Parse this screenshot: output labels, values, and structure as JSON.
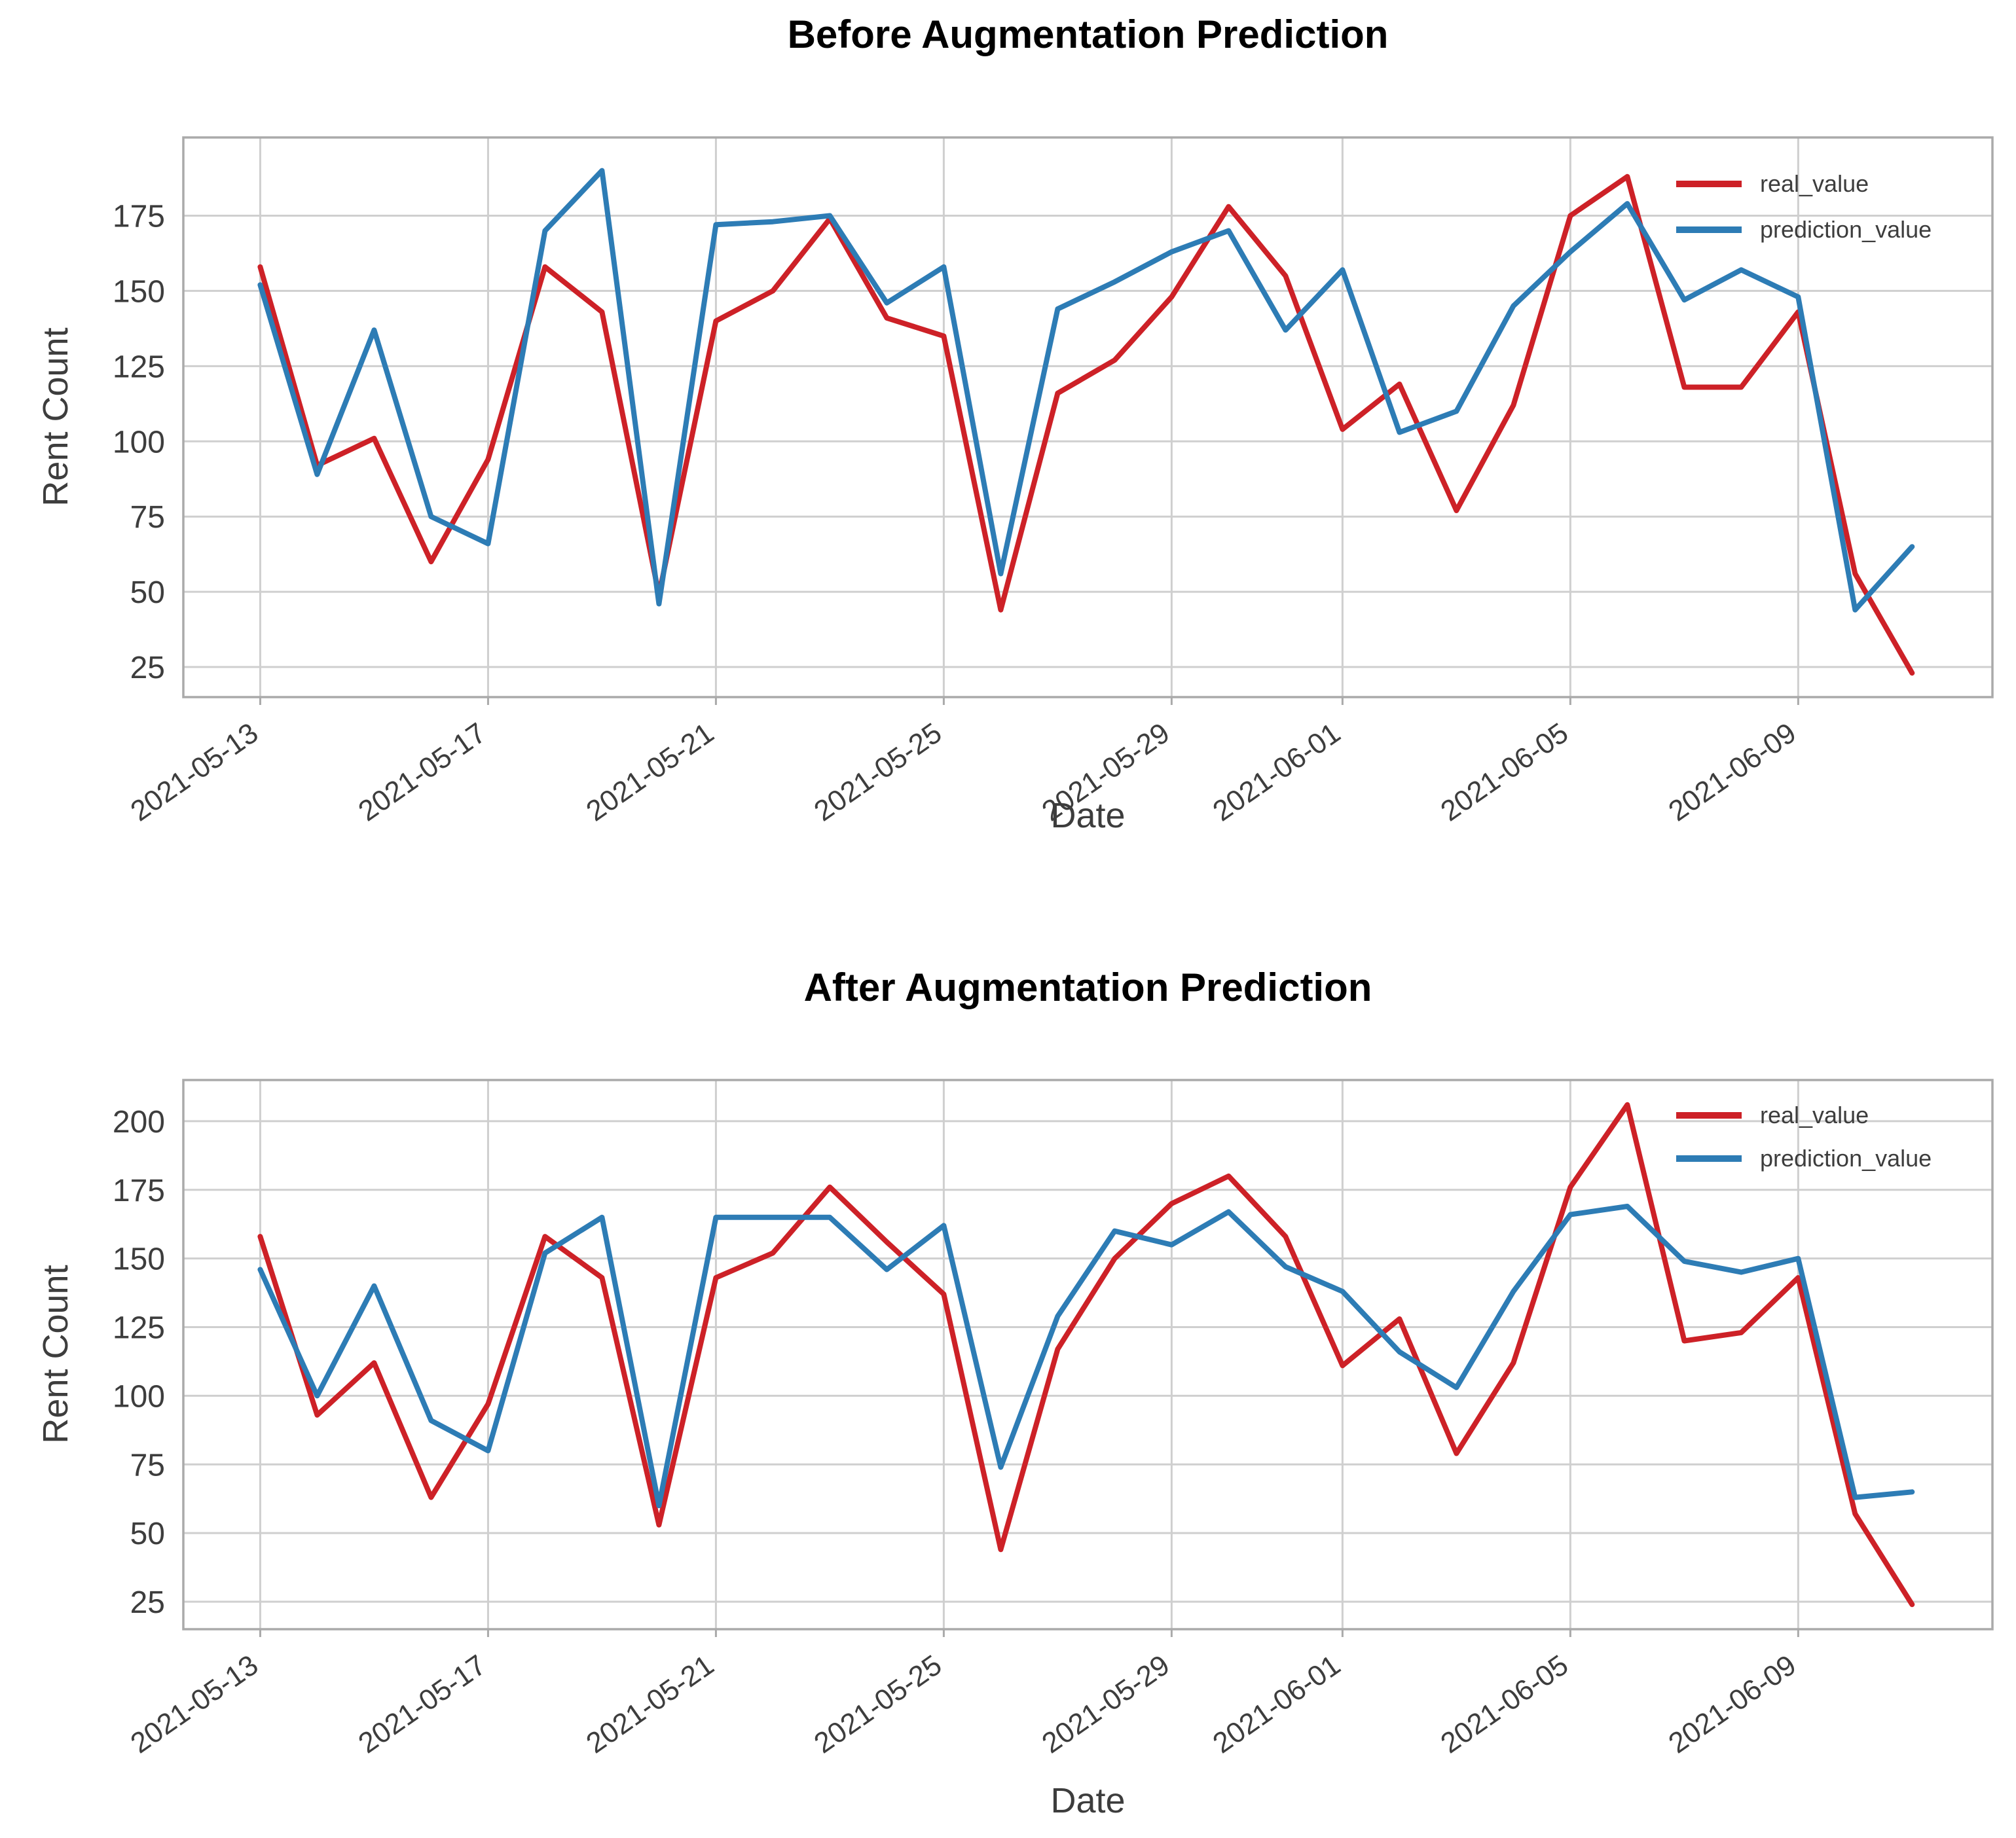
{
  "figure": {
    "background": "#ffffff"
  },
  "style": {
    "grid_color": "#cfcfcf",
    "spine_color": "#aaaaaa",
    "tick_label_color": "#3d3d3d",
    "axis_label_color": "#3d3d3d",
    "title_color": "#000000",
    "real_color": "#cd2127",
    "prediction_color": "#2d7cb5"
  },
  "chart_data": [
    {
      "type": "line",
      "title": "Before Augmentation Prediction",
      "xlabel": "Date",
      "ylabel": "Rent Count",
      "grid": true,
      "legend_position": "upper right",
      "ylim": [
        15,
        201
      ],
      "xlim": [
        -1.35,
        30.41
      ],
      "yticks": [
        25,
        50,
        75,
        100,
        125,
        150,
        175
      ],
      "xticks": [
        {
          "index": 0,
          "label": "2021-05-13"
        },
        {
          "index": 4,
          "label": "2021-05-17"
        },
        {
          "index": 8,
          "label": "2021-05-21"
        },
        {
          "index": 12,
          "label": "2021-05-25"
        },
        {
          "index": 16,
          "label": "2021-05-29"
        },
        {
          "index": 19,
          "label": "2021-06-01"
        },
        {
          "index": 23,
          "label": "2021-06-05"
        },
        {
          "index": 27,
          "label": "2021-06-09"
        }
      ],
      "x_dates": [
        "2021-05-13",
        "2021-05-14",
        "2021-05-15",
        "2021-05-16",
        "2021-05-17",
        "2021-05-18",
        "2021-05-19",
        "2021-05-20",
        "2021-05-21",
        "2021-05-22",
        "2021-05-23",
        "2021-05-24",
        "2021-05-25",
        "2021-05-26",
        "2021-05-27",
        "2021-05-28",
        "2021-05-29",
        "2021-05-30",
        "2021-05-31",
        "2021-06-01",
        "2021-06-02",
        "2021-06-03",
        "2021-06-04",
        "2021-06-05",
        "2021-06-06",
        "2021-06-07",
        "2021-06-08",
        "2021-06-09",
        "2021-06-10",
        "2021-06-11"
      ],
      "series": [
        {
          "name": "real_value",
          "color": "#cd2127",
          "values": [
            158,
            92,
            101,
            60,
            94,
            158,
            143,
            49,
            140,
            150,
            174,
            141,
            135,
            44,
            116,
            127,
            148,
            178,
            155,
            104,
            119,
            77,
            112,
            175,
            188,
            118,
            118,
            143,
            56,
            23
          ]
        },
        {
          "name": "prediction_value",
          "color": "#2d7cb5",
          "values": [
            152,
            89,
            137,
            75,
            66,
            170,
            190,
            46,
            172,
            173,
            175,
            146,
            158,
            56,
            144,
            153,
            163,
            170,
            137,
            157,
            103,
            110,
            145,
            163,
            179,
            147,
            157,
            148,
            44,
            65
          ]
        }
      ]
    },
    {
      "type": "line",
      "title": "After Augmentation Prediction",
      "xlabel": "Date",
      "ylabel": "Rent Count",
      "grid": true,
      "legend_position": "upper right",
      "ylim": [
        15,
        215
      ],
      "xlim": [
        -1.35,
        30.41
      ],
      "yticks": [
        25,
        50,
        75,
        100,
        125,
        150,
        175,
        200
      ],
      "xticks": [
        {
          "index": 0,
          "label": "2021-05-13"
        },
        {
          "index": 4,
          "label": "2021-05-17"
        },
        {
          "index": 8,
          "label": "2021-05-21"
        },
        {
          "index": 12,
          "label": "2021-05-25"
        },
        {
          "index": 16,
          "label": "2021-05-29"
        },
        {
          "index": 19,
          "label": "2021-06-01"
        },
        {
          "index": 23,
          "label": "2021-06-05"
        },
        {
          "index": 27,
          "label": "2021-06-09"
        }
      ],
      "x_dates": [
        "2021-05-13",
        "2021-05-14",
        "2021-05-15",
        "2021-05-16",
        "2021-05-17",
        "2021-05-18",
        "2021-05-19",
        "2021-05-20",
        "2021-05-21",
        "2021-05-22",
        "2021-05-23",
        "2021-05-24",
        "2021-05-25",
        "2021-05-26",
        "2021-05-27",
        "2021-05-28",
        "2021-05-29",
        "2021-05-30",
        "2021-05-31",
        "2021-06-01",
        "2021-06-02",
        "2021-06-03",
        "2021-06-04",
        "2021-06-05",
        "2021-06-06",
        "2021-06-07",
        "2021-06-08",
        "2021-06-09",
        "2021-06-10",
        "2021-06-11"
      ],
      "series": [
        {
          "name": "real_value",
          "color": "#cd2127",
          "values": [
            158,
            93,
            112,
            63,
            97,
            158,
            143,
            53,
            143,
            152,
            176,
            156,
            137,
            44,
            117,
            150,
            170,
            180,
            158,
            111,
            128,
            79,
            112,
            176,
            206,
            120,
            123,
            143,
            57,
            24
          ]
        },
        {
          "name": "prediction_value",
          "color": "#2d7cb5",
          "values": [
            146,
            100,
            140,
            91,
            80,
            152,
            165,
            60,
            165,
            165,
            165,
            146,
            162,
            74,
            129,
            160,
            155,
            167,
            147,
            138,
            116,
            103,
            138,
            166,
            169,
            149,
            145,
            150,
            63,
            65
          ]
        }
      ]
    }
  ]
}
